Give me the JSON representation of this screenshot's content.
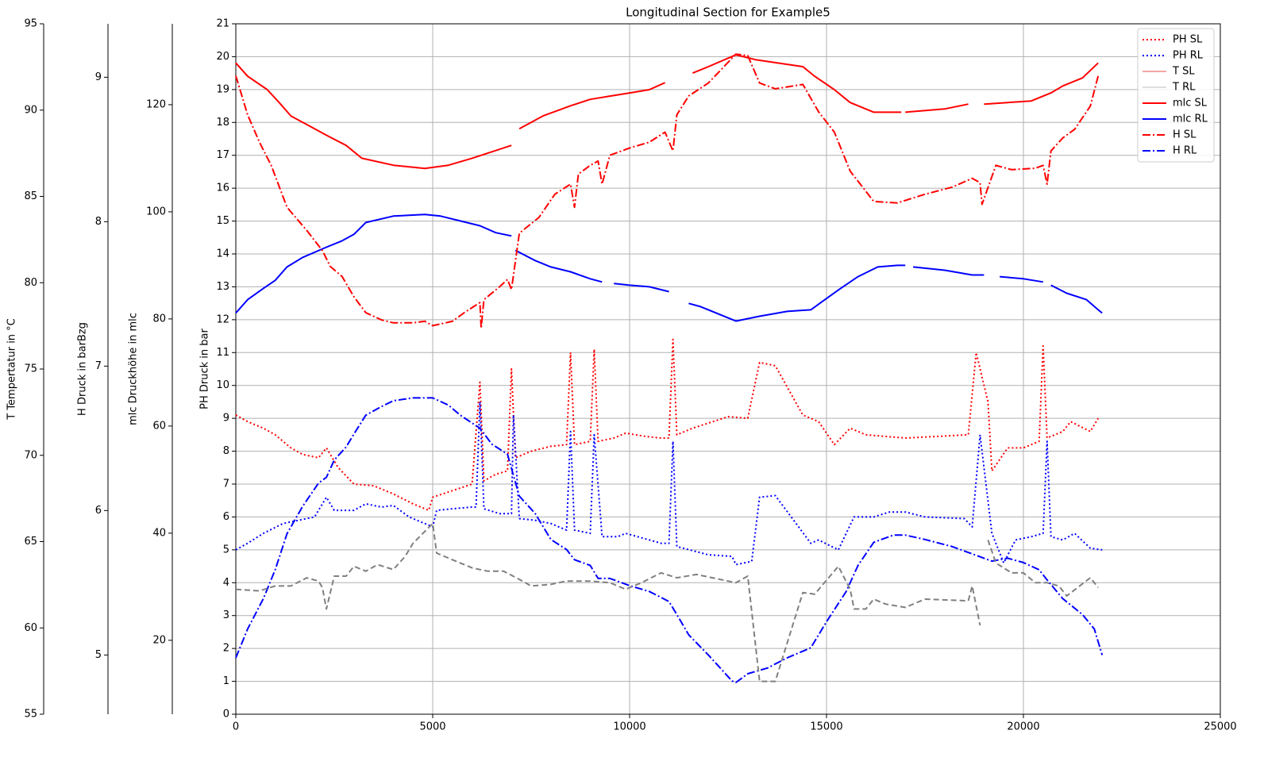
{
  "chart_data": {
    "type": "line",
    "title": "Longitudinal Section for Example5",
    "grid": true,
    "legend": "upper right",
    "xlim": [
      0,
      25000
    ],
    "xticks": [
      0,
      5000,
      10000,
      15000,
      20000,
      25000
    ],
    "ylabel": "PH Druck in bar",
    "ylim": [
      0,
      21
    ],
    "yticks": [
      0,
      1,
      2,
      3,
      4,
      5,
      6,
      7,
      8,
      9,
      10,
      11,
      12,
      13,
      14,
      15,
      16,
      17,
      18,
      19,
      20,
      21
    ],
    "y2label": "mlc Druckhöhe in mlc",
    "y2lim": [
      6.2,
      135.1
    ],
    "y2ticks": [
      20,
      40,
      60,
      80,
      100,
      120
    ],
    "y3label": "H Druck in barBzg",
    "y3lim": [
      4.59,
      9.37
    ],
    "y3ticks": [
      5,
      6,
      7,
      8,
      9
    ],
    "y4label": "T Tempertatur in °C",
    "y4lim": [
      55,
      95
    ],
    "y4ticks": [
      55,
      60,
      65,
      70,
      75,
      80,
      85,
      90,
      95
    ],
    "series": [
      {
        "name": "PH SL",
        "color": "#ff0000",
        "linestyle": "dotted",
        "axis": "y",
        "x": [
          0,
          300,
          700,
          1000,
          1400,
          1700,
          2100,
          2300,
          2600,
          3000,
          3500,
          4000,
          4500,
          4900,
          5000,
          5500,
          6000,
          6200,
          6300,
          6600,
          6900,
          7000,
          7100,
          7500,
          8000,
          8400,
          8500,
          8600,
          9000,
          9100,
          9200,
          9600,
          9900,
          10400,
          10800,
          11000,
          11100,
          11200,
          11600,
          12500,
          13000,
          13300,
          13700,
          14400,
          14800,
          15200,
          15600,
          16000,
          17000,
          18600,
          18800,
          19100,
          19200,
          19600,
          20000,
          20400,
          20500,
          20600,
          21000,
          21200,
          21700,
          21900
        ],
        "values": [
          9.1,
          8.9,
          8.7,
          8.5,
          8.1,
          7.9,
          7.8,
          8.1,
          7.5,
          7.0,
          6.95,
          6.7,
          6.4,
          6.2,
          6.6,
          6.8,
          7.0,
          10.1,
          7.1,
          7.3,
          7.4,
          10.5,
          7.8,
          8.0,
          8.15,
          8.2,
          11.0,
          8.2,
          8.3,
          11.1,
          8.3,
          8.4,
          8.55,
          8.45,
          8.4,
          8.4,
          11.4,
          8.5,
          8.7,
          9.05,
          9.0,
          10.7,
          10.6,
          9.1,
          8.9,
          8.2,
          8.7,
          8.5,
          8.4,
          8.5,
          11.0,
          9.5,
          7.4,
          8.1,
          8.1,
          8.3,
          11.2,
          8.4,
          8.6,
          8.9,
          8.6,
          9.0
        ]
      },
      {
        "name": "PH RL",
        "color": "#0000ff",
        "linestyle": "dotted",
        "axis": "y",
        "x": [
          0,
          300,
          700,
          1200,
          2000,
          2300,
          2500,
          3000,
          3300,
          3700,
          4000,
          4400,
          5000,
          5100,
          5500,
          6000,
          6100,
          6200,
          6300,
          6700,
          7000,
          7050,
          7200,
          7600,
          8000,
          8400,
          8500,
          8600,
          9000,
          9100,
          9300,
          9700,
          9900,
          10500,
          10800,
          11000,
          11100,
          11200,
          12000,
          12600,
          12700,
          13100,
          13300,
          13700,
          14600,
          14800,
          15300,
          15700,
          16200,
          16600,
          17000,
          17500,
          18500,
          18700,
          18900,
          19200,
          19500,
          19800,
          20200,
          20500,
          20600,
          20700,
          21000,
          21300,
          21700,
          22000
        ],
        "values": [
          5.0,
          5.2,
          5.5,
          5.8,
          6.0,
          6.6,
          6.2,
          6.2,
          6.4,
          6.3,
          6.35,
          6.0,
          5.7,
          6.2,
          6.25,
          6.3,
          6.3,
          9.5,
          6.25,
          6.1,
          6.1,
          9.1,
          5.95,
          5.9,
          5.8,
          5.6,
          8.6,
          5.6,
          5.5,
          8.5,
          5.4,
          5.4,
          5.5,
          5.3,
          5.2,
          5.2,
          8.3,
          5.1,
          4.85,
          4.8,
          4.55,
          4.65,
          6.6,
          6.65,
          5.2,
          5.3,
          5.0,
          6.0,
          6.0,
          6.15,
          6.15,
          6.0,
          5.95,
          5.7,
          8.5,
          5.5,
          4.6,
          5.3,
          5.4,
          5.5,
          8.3,
          5.4,
          5.3,
          5.5,
          5.05,
          5.0
        ]
      },
      {
        "name": "T SL",
        "color": "#f4a6a6",
        "linestyle": "solid",
        "axis": "y4",
        "x": [],
        "values": []
      },
      {
        "name": "T RL",
        "color": "#dddddd",
        "linestyle": "solid",
        "axis": "y4",
        "x": [],
        "values": []
      },
      {
        "name": "mlc SL",
        "color": "#ff0000",
        "linestyle": "solid",
        "axis": "y2",
        "x": [
          0,
          300,
          800,
          1100,
          1400,
          2000,
          2300,
          2800,
          3200,
          4000,
          4800,
          5400,
          6000,
          6500,
          7000,
          7100,
          7200,
          7800,
          8500,
          9000,
          9500,
          10000,
          10500,
          10900,
          11250,
          11600,
          12000,
          12700,
          13200,
          14400,
          14700,
          15200,
          15600,
          16200,
          16900,
          16950,
          17000,
          18000,
          18600,
          18800,
          19000,
          20200,
          20700,
          21000,
          21500,
          21900
        ],
        "values": [
          127.8,
          125.3,
          122.8,
          120.4,
          117.9,
          115.5,
          114.3,
          112.4,
          110.0,
          108.7,
          108.1,
          108.7,
          110.0,
          111.2,
          112.4,
          null,
          115.5,
          117.9,
          119.8,
          121.0,
          121.6,
          122.2,
          122.8,
          124.1,
          null,
          125.9,
          127.1,
          129.3,
          128.4,
          127.1,
          125.3,
          122.8,
          120.4,
          118.6,
          118.6,
          null,
          118.6,
          119.2,
          120.1,
          null,
          120.1,
          120.7,
          122.2,
          123.5,
          125.0,
          127.8
        ]
      },
      {
        "name": "mlc RL",
        "color": "#0000ff",
        "linestyle": "solid",
        "axis": "y2",
        "x": [
          0,
          300,
          700,
          1000,
          1300,
          1700,
          2300,
          2700,
          3000,
          3300,
          4000,
          4800,
          5200,
          5700,
          6200,
          6600,
          7000,
          7050,
          7100,
          7600,
          8000,
          8500,
          9000,
          9300,
          9450,
          9600,
          10000,
          10500,
          11000,
          11250,
          11500,
          11800,
          12700,
          13300,
          14000,
          14600,
          15300,
          15800,
          16300,
          16800,
          17000,
          17100,
          17200,
          18000,
          18700,
          19000,
          19200,
          19400,
          20000,
          20500,
          20600,
          20700,
          21100,
          21600,
          21900,
          22000
        ],
        "values": [
          81.1,
          83.6,
          85.7,
          87.2,
          89.7,
          91.5,
          93.4,
          94.6,
          95.8,
          98.0,
          99.2,
          99.5,
          99.2,
          98.3,
          97.4,
          96.1,
          95.5,
          null,
          92.8,
          90.9,
          89.7,
          88.8,
          87.5,
          86.9,
          null,
          86.6,
          86.3,
          86.0,
          85.1,
          null,
          82.9,
          82.3,
          79.6,
          80.5,
          81.4,
          81.7,
          85.4,
          87.9,
          89.7,
          90.0,
          90.0,
          null,
          89.7,
          89.1,
          88.2,
          88.2,
          null,
          87.9,
          87.5,
          86.9,
          null,
          86.3,
          84.8,
          83.6,
          81.7,
          81.1
        ]
      },
      {
        "name": "H SL",
        "color": "#ff0000",
        "linestyle": "dashdot",
        "axis": "y3",
        "x": [
          0,
          300,
          600,
          900,
          1300,
          1800,
          2200,
          2400,
          2700,
          3000,
          3300,
          3700,
          4000,
          4500,
          4800,
          5000,
          5500,
          5800,
          6200,
          6230,
          6300,
          6700,
          6900,
          7000,
          7200,
          7700,
          8100,
          8500,
          8600,
          8700,
          9000,
          9200,
          9300,
          9500,
          10000,
          10500,
          10900,
          11100,
          11200,
          11500,
          12000,
          12700,
          13000,
          13300,
          13700,
          14400,
          14800,
          15200,
          15600,
          16200,
          16800,
          17500,
          18200,
          18700,
          18900,
          18950,
          19300,
          19700,
          20300,
          20500,
          20600,
          20700,
          21000,
          21300,
          21700,
          21900
        ],
        "values": [
          9.01,
          8.74,
          8.55,
          8.39,
          8.1,
          7.94,
          7.8,
          7.69,
          7.62,
          7.48,
          7.37,
          7.32,
          7.3,
          7.3,
          7.31,
          7.28,
          7.31,
          7.37,
          7.44,
          7.26,
          7.46,
          7.55,
          7.6,
          7.53,
          7.92,
          8.03,
          8.19,
          8.26,
          8.1,
          8.33,
          8.39,
          8.42,
          8.26,
          8.46,
          8.51,
          8.55,
          8.62,
          8.49,
          8.74,
          8.87,
          8.96,
          9.16,
          9.15,
          8.96,
          8.92,
          8.95,
          8.76,
          8.62,
          8.35,
          8.14,
          8.13,
          8.19,
          8.24,
          8.3,
          8.27,
          8.12,
          8.39,
          8.36,
          8.37,
          8.39,
          8.26,
          8.49,
          8.58,
          8.64,
          8.8,
          9.01
        ]
      },
      {
        "name": "H RL",
        "color": "#0000ff",
        "linestyle": "dashdot",
        "axis": "y3",
        "x": [
          0,
          300,
          700,
          1000,
          1300,
          1700,
          2100,
          2300,
          2500,
          2800,
          3000,
          3300,
          3700,
          4000,
          4500,
          5000,
          5400,
          5700,
          6200,
          6500,
          6900,
          7200,
          7600,
          8000,
          8400,
          8600,
          9000,
          9200,
          9500,
          10000,
          10500,
          11000,
          11200,
          11500,
          12000,
          12600,
          12700,
          13000,
          13500,
          14000,
          14600,
          15000,
          15500,
          15800,
          16200,
          16700,
          17000,
          17500,
          18200,
          18800,
          19200,
          19600,
          20000,
          20400,
          20600,
          21000,
          21500,
          21800,
          22000
        ],
        "values": [
          4.98,
          5.18,
          5.39,
          5.59,
          5.84,
          6.03,
          6.19,
          6.23,
          6.35,
          6.44,
          6.53,
          6.66,
          6.72,
          6.76,
          6.78,
          6.78,
          6.73,
          6.66,
          6.57,
          6.46,
          6.39,
          6.1,
          5.98,
          5.8,
          5.73,
          5.66,
          5.62,
          5.53,
          5.53,
          5.48,
          5.44,
          5.37,
          5.28,
          5.14,
          5.0,
          4.82,
          4.81,
          4.87,
          4.91,
          4.98,
          5.05,
          5.23,
          5.44,
          5.62,
          5.78,
          5.83,
          5.83,
          5.8,
          5.75,
          5.69,
          5.65,
          5.67,
          5.64,
          5.59,
          5.52,
          5.39,
          5.28,
          5.18,
          5.0
        ]
      },
      {
        "color": "#808080",
        "linestyle": "dashed",
        "axis": "y",
        "x": [
          0,
          600,
          1000,
          1400,
          1800,
          2100,
          2200,
          2300,
          2500,
          2800,
          3000,
          3300,
          3600,
          4000,
          4300,
          4500,
          5000,
          5100,
          5600,
          6000,
          6400,
          6800,
          7200,
          7500,
          8000,
          8400,
          9000,
          9500,
          9900,
          10300,
          10800,
          11200,
          11700,
          12700,
          13000,
          13300,
          13700,
          14400,
          14700,
          15300,
          15600,
          15700,
          16000,
          16200,
          16500,
          17000,
          17500,
          18600,
          18700,
          18900,
          19000,
          19100,
          19300,
          19700,
          20000,
          20300,
          20600,
          20900,
          21100,
          21700,
          21900
        ],
        "values": [
          3.8,
          3.75,
          3.9,
          3.9,
          4.15,
          4.05,
          3.85,
          3.2,
          4.2,
          4.2,
          4.5,
          4.35,
          4.55,
          4.4,
          4.8,
          5.2,
          5.8,
          4.9,
          4.65,
          4.45,
          4.35,
          4.35,
          4.1,
          3.9,
          3.95,
          4.05,
          4.05,
          4.0,
          3.8,
          4.0,
          4.3,
          4.15,
          4.25,
          4.0,
          4.2,
          1.0,
          1.0,
          3.7,
          3.65,
          4.5,
          3.8,
          3.2,
          3.2,
          3.5,
          3.35,
          3.25,
          3.5,
          3.45,
          3.9,
          2.7,
          null,
          5.3,
          4.6,
          4.3,
          4.3,
          4.0,
          4.0,
          3.9,
          3.6,
          4.15,
          3.85
        ]
      }
    ]
  }
}
